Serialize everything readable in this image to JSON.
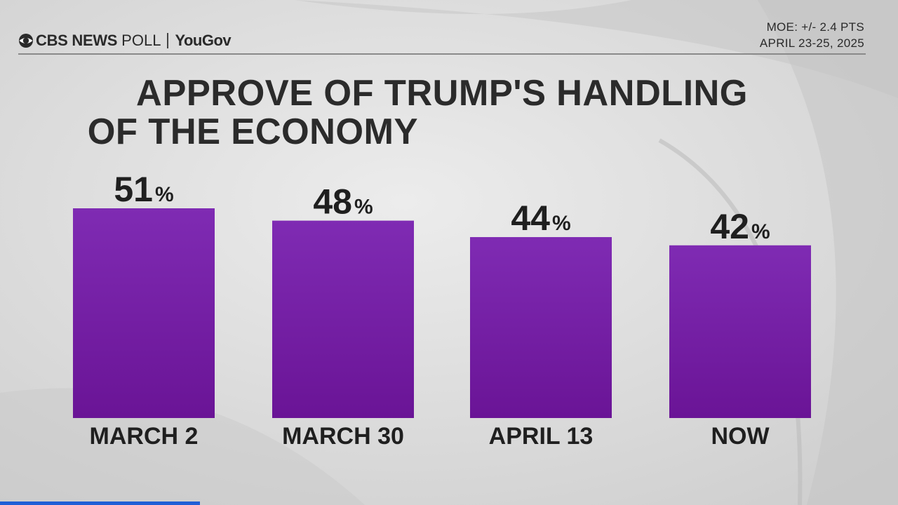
{
  "header": {
    "brand": "CBS NEWS",
    "poll": "POLL",
    "partner": "YouGov",
    "moe": "MOE: +/- 2.4 PTS",
    "dates": "APRIL 23-25, 2025"
  },
  "chart_data": {
    "type": "bar",
    "title_line1": "APPROVE OF TRUMP'S HANDLING",
    "title_line2": "OF THE ECONOMY",
    "categories": [
      "MARCH 2",
      "MARCH 30",
      "APRIL 13",
      "NOW"
    ],
    "values": [
      51,
      48,
      44,
      42
    ],
    "value_suffix": "%",
    "bar_color_top": "#7f2bb3",
    "bar_color_bottom": "#6a1496",
    "ylim": [
      0,
      51
    ]
  }
}
